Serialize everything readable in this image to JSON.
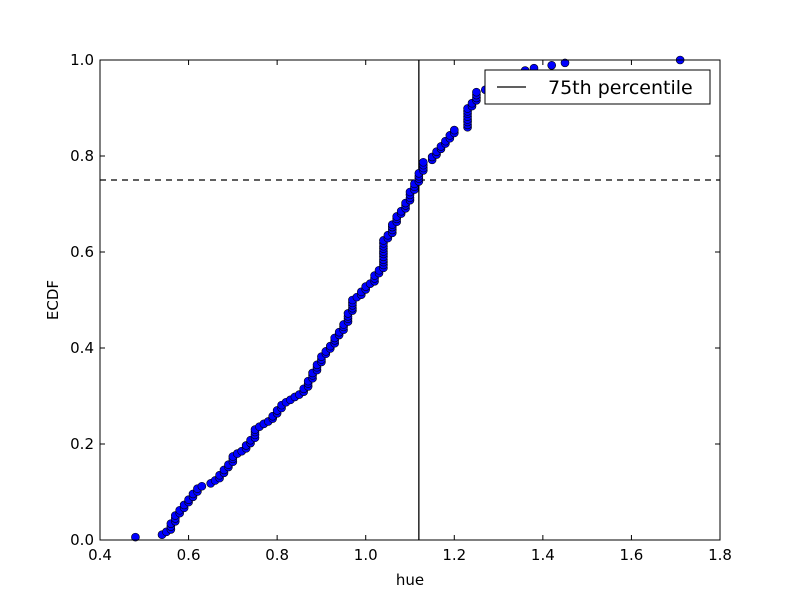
{
  "chart_data": {
    "type": "scatter",
    "title": "",
    "xlabel": "hue",
    "ylabel": "ECDF",
    "xlim": [
      0.4,
      1.8
    ],
    "ylim": [
      0.0,
      1.0
    ],
    "x_ticks": [
      "0.4",
      "0.6",
      "0.8",
      "1.0",
      "1.2",
      "1.4",
      "1.6",
      "1.8"
    ],
    "y_ticks": [
      "0.0",
      "0.2",
      "0.4",
      "0.6",
      "0.8",
      "1.0"
    ],
    "grid": false,
    "legend": {
      "position": "top-right",
      "label": "75th percentile"
    },
    "percentile_x": 1.12,
    "percentile_y": 0.75,
    "marker_color": "#0000ff",
    "points": [
      [
        0.48,
        0.006
      ],
      [
        0.54,
        0.011
      ],
      [
        0.55,
        0.017
      ],
      [
        0.56,
        0.022
      ],
      [
        0.56,
        0.028
      ],
      [
        0.56,
        0.034
      ],
      [
        0.57,
        0.039
      ],
      [
        0.57,
        0.045
      ],
      [
        0.57,
        0.051
      ],
      [
        0.58,
        0.056
      ],
      [
        0.58,
        0.062
      ],
      [
        0.59,
        0.067
      ],
      [
        0.59,
        0.073
      ],
      [
        0.6,
        0.079
      ],
      [
        0.6,
        0.084
      ],
      [
        0.61,
        0.09
      ],
      [
        0.61,
        0.096
      ],
      [
        0.62,
        0.101
      ],
      [
        0.62,
        0.107
      ],
      [
        0.63,
        0.112
      ],
      [
        0.65,
        0.118
      ],
      [
        0.66,
        0.124
      ],
      [
        0.67,
        0.129
      ],
      [
        0.67,
        0.135
      ],
      [
        0.68,
        0.14
      ],
      [
        0.68,
        0.146
      ],
      [
        0.69,
        0.152
      ],
      [
        0.69,
        0.157
      ],
      [
        0.7,
        0.163
      ],
      [
        0.7,
        0.169
      ],
      [
        0.7,
        0.174
      ],
      [
        0.71,
        0.18
      ],
      [
        0.72,
        0.185
      ],
      [
        0.73,
        0.191
      ],
      [
        0.73,
        0.197
      ],
      [
        0.74,
        0.202
      ],
      [
        0.74,
        0.208
      ],
      [
        0.75,
        0.213
      ],
      [
        0.75,
        0.219
      ],
      [
        0.75,
        0.225
      ],
      [
        0.75,
        0.23
      ],
      [
        0.76,
        0.236
      ],
      [
        0.77,
        0.242
      ],
      [
        0.78,
        0.247
      ],
      [
        0.79,
        0.253
      ],
      [
        0.79,
        0.258
      ],
      [
        0.8,
        0.264
      ],
      [
        0.8,
        0.27
      ],
      [
        0.81,
        0.275
      ],
      [
        0.81,
        0.281
      ],
      [
        0.82,
        0.287
      ],
      [
        0.83,
        0.292
      ],
      [
        0.84,
        0.298
      ],
      [
        0.85,
        0.303
      ],
      [
        0.86,
        0.309
      ],
      [
        0.86,
        0.315
      ],
      [
        0.87,
        0.32
      ],
      [
        0.87,
        0.326
      ],
      [
        0.87,
        0.331
      ],
      [
        0.88,
        0.337
      ],
      [
        0.88,
        0.343
      ],
      [
        0.88,
        0.348
      ],
      [
        0.89,
        0.354
      ],
      [
        0.89,
        0.36
      ],
      [
        0.89,
        0.365
      ],
      [
        0.9,
        0.371
      ],
      [
        0.9,
        0.376
      ],
      [
        0.9,
        0.382
      ],
      [
        0.91,
        0.388
      ],
      [
        0.91,
        0.393
      ],
      [
        0.92,
        0.399
      ],
      [
        0.92,
        0.404
      ],
      [
        0.93,
        0.41
      ],
      [
        0.93,
        0.416
      ],
      [
        0.93,
        0.421
      ],
      [
        0.94,
        0.427
      ],
      [
        0.94,
        0.433
      ],
      [
        0.95,
        0.438
      ],
      [
        0.95,
        0.444
      ],
      [
        0.95,
        0.449
      ],
      [
        0.96,
        0.455
      ],
      [
        0.96,
        0.461
      ],
      [
        0.96,
        0.466
      ],
      [
        0.96,
        0.472
      ],
      [
        0.97,
        0.478
      ],
      [
        0.97,
        0.483
      ],
      [
        0.97,
        0.489
      ],
      [
        0.97,
        0.494
      ],
      [
        0.97,
        0.5
      ],
      [
        0.98,
        0.506
      ],
      [
        0.99,
        0.511
      ],
      [
        0.99,
        0.517
      ],
      [
        1.0,
        0.522
      ],
      [
        1.0,
        0.528
      ],
      [
        1.01,
        0.534
      ],
      [
        1.02,
        0.539
      ],
      [
        1.02,
        0.545
      ],
      [
        1.02,
        0.551
      ],
      [
        1.03,
        0.556
      ],
      [
        1.03,
        0.562
      ],
      [
        1.04,
        0.567
      ],
      [
        1.04,
        0.573
      ],
      [
        1.04,
        0.579
      ],
      [
        1.04,
        0.584
      ],
      [
        1.04,
        0.59
      ],
      [
        1.04,
        0.596
      ],
      [
        1.04,
        0.601
      ],
      [
        1.04,
        0.607
      ],
      [
        1.04,
        0.612
      ],
      [
        1.04,
        0.618
      ],
      [
        1.04,
        0.624
      ],
      [
        1.05,
        0.629
      ],
      [
        1.05,
        0.635
      ],
      [
        1.06,
        0.64
      ],
      [
        1.06,
        0.646
      ],
      [
        1.06,
        0.652
      ],
      [
        1.06,
        0.657
      ],
      [
        1.07,
        0.663
      ],
      [
        1.07,
        0.669
      ],
      [
        1.07,
        0.674
      ],
      [
        1.08,
        0.68
      ],
      [
        1.08,
        0.685
      ],
      [
        1.09,
        0.691
      ],
      [
        1.09,
        0.697
      ],
      [
        1.09,
        0.702
      ],
      [
        1.1,
        0.708
      ],
      [
        1.1,
        0.713
      ],
      [
        1.1,
        0.719
      ],
      [
        1.1,
        0.725
      ],
      [
        1.11,
        0.73
      ],
      [
        1.11,
        0.736
      ],
      [
        1.11,
        0.742
      ],
      [
        1.12,
        0.747
      ],
      [
        1.12,
        0.753
      ],
      [
        1.12,
        0.758
      ],
      [
        1.12,
        0.764
      ],
      [
        1.13,
        0.77
      ],
      [
        1.13,
        0.775
      ],
      [
        1.13,
        0.781
      ],
      [
        1.13,
        0.787
      ],
      [
        1.15,
        0.792
      ],
      [
        1.15,
        0.798
      ],
      [
        1.16,
        0.803
      ],
      [
        1.16,
        0.809
      ],
      [
        1.17,
        0.815
      ],
      [
        1.17,
        0.82
      ],
      [
        1.18,
        0.826
      ],
      [
        1.18,
        0.831
      ],
      [
        1.19,
        0.837
      ],
      [
        1.19,
        0.843
      ],
      [
        1.2,
        0.848
      ],
      [
        1.2,
        0.854
      ],
      [
        1.23,
        0.86
      ],
      [
        1.23,
        0.865
      ],
      [
        1.23,
        0.871
      ],
      [
        1.23,
        0.876
      ],
      [
        1.23,
        0.882
      ],
      [
        1.23,
        0.888
      ],
      [
        1.23,
        0.893
      ],
      [
        1.23,
        0.899
      ],
      [
        1.24,
        0.904
      ],
      [
        1.24,
        0.91
      ],
      [
        1.25,
        0.916
      ],
      [
        1.25,
        0.921
      ],
      [
        1.25,
        0.927
      ],
      [
        1.25,
        0.933
      ],
      [
        1.27,
        0.938
      ],
      [
        1.28,
        0.944
      ],
      [
        1.3,
        0.949
      ],
      [
        1.32,
        0.955
      ],
      [
        1.34,
        0.961
      ],
      [
        1.35,
        0.966
      ],
      [
        1.36,
        0.972
      ],
      [
        1.36,
        0.978
      ],
      [
        1.38,
        0.983
      ],
      [
        1.42,
        0.989
      ],
      [
        1.45,
        0.994
      ],
      [
        1.71,
        1.0
      ]
    ]
  }
}
